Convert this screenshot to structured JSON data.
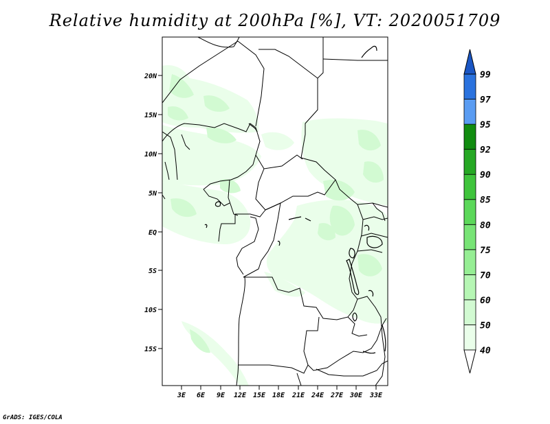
{
  "title": "Relative humidity at 200hPa [%], VT: 2020051709",
  "footer": "GrADS: IGES/COLA",
  "map": {
    "lat_labels": [
      "20N",
      "15N",
      "10N",
      "5N",
      "EQ",
      "5S",
      "10S",
      "15S"
    ],
    "lon_labels": [
      "3E",
      "6E",
      "9E",
      "12E",
      "15E",
      "18E",
      "21E",
      "24E",
      "27E",
      "30E",
      "33E"
    ]
  },
  "colorbar": {
    "levels": [
      "40",
      "50",
      "60",
      "70",
      "75",
      "80",
      "85",
      "90",
      "92",
      "95",
      "97",
      "99"
    ],
    "colors": [
      "#eafeea",
      "#d2fad2",
      "#b6f6b4",
      "#96ee94",
      "#78e476",
      "#5cd85a",
      "#3fc43c",
      "#26a824",
      "#118c10",
      "#5a9cf2",
      "#2a72de",
      "#1a56c4"
    ],
    "under_color": "#ffffff",
    "over_color": "#1a56c4"
  },
  "chart_data": {
    "type": "heatmap",
    "title": "Relative humidity at 200hPa [%], VT: 2020051709",
    "variable": "Relative humidity",
    "units": "%",
    "level": "200hPa",
    "valid_time": "2020051709",
    "x_range_deg": [
      0,
      34
    ],
    "y_range_deg": [
      -20,
      25
    ],
    "legend_levels": [
      40,
      50,
      60,
      70,
      75,
      80,
      85,
      90,
      92,
      95,
      97,
      99
    ],
    "visible_max_category": "60"
  }
}
